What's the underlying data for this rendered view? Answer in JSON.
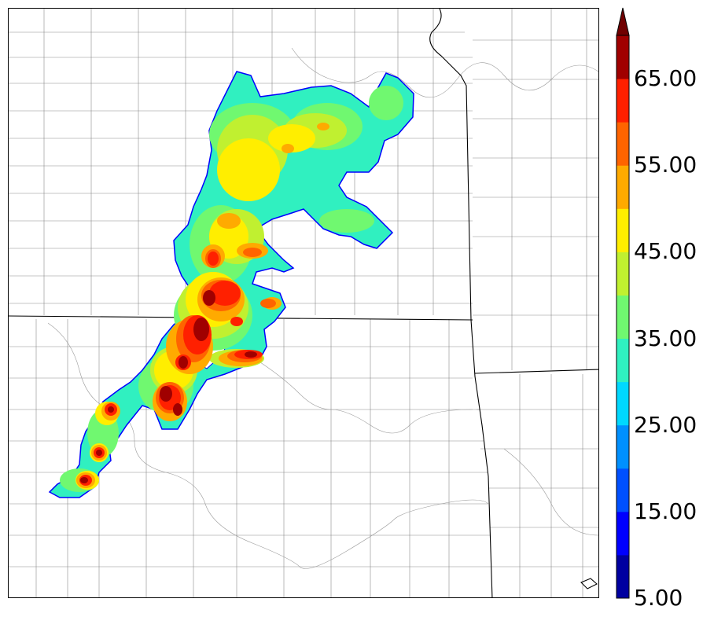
{
  "colorbar": {
    "tick_labels": [
      "5.00",
      "15.00",
      "25.00",
      "35.00",
      "45.00",
      "55.00",
      "65.00"
    ],
    "levels": [
      5,
      10,
      15,
      20,
      25,
      30,
      35,
      40,
      45,
      50,
      55,
      60,
      65,
      70
    ],
    "colors": [
      "#0000a0",
      "#0000ff",
      "#0050ff",
      "#0090ff",
      "#00d8ff",
      "#30f0c0",
      "#70f870",
      "#c0f030",
      "#ffee00",
      "#ffaa00",
      "#ff6400",
      "#ff2000",
      "#a00000"
    ],
    "extend": "max",
    "extend_color": "#700000"
  },
  "map": {
    "region": "southern Kansas / northern Oklahoma county map",
    "field_colors": {
      "outline": "#0000ff",
      "c30": "#30f0c0",
      "c40": "#c0f030",
      "c45": "#ffee00",
      "c50": "#ffaa00",
      "c55": "#ff6400",
      "c60": "#ff2000",
      "c65": "#a00000"
    }
  }
}
